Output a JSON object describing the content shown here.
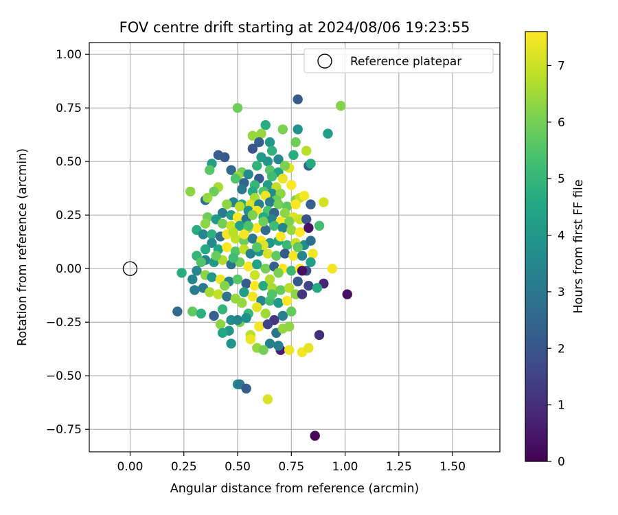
{
  "chart_data": {
    "type": "scatter",
    "title": "FOV centre drift starting at 2024/08/06 19:23:55",
    "xlabel": "Angular distance from reference (arcmin)",
    "ylabel": "Rotation from reference (arcmin)",
    "xlim": [
      -0.19,
      1.72
    ],
    "ylim": [
      -0.855,
      1.055
    ],
    "xticks": [
      0.0,
      0.25,
      0.5,
      0.75,
      1.0,
      1.25,
      1.5
    ],
    "xtick_labels": [
      "0.00",
      "0.25",
      "0.50",
      "0.75",
      "1.00",
      "1.25",
      "1.50"
    ],
    "yticks": [
      -0.75,
      -0.5,
      -0.25,
      0.0,
      0.25,
      0.5,
      0.75,
      1.0
    ],
    "ytick_labels": [
      "−0.75",
      "−0.50",
      "−0.25",
      "0.00",
      "0.25",
      "0.50",
      "0.75",
      "1.00"
    ],
    "grid": true,
    "legend": {
      "position": "top-right",
      "entries": [
        "Reference platepar"
      ]
    },
    "reference_point": {
      "x": 0.0,
      "y": 0.0,
      "label": "Reference platepar"
    },
    "colorbar": {
      "label": "Hours from first FF file",
      "colormap": "viridis",
      "range": [
        0,
        7.6
      ],
      "ticks": [
        0,
        1,
        2,
        3,
        4,
        5,
        6,
        7
      ],
      "tick_labels": [
        "0",
        "1",
        "2",
        "3",
        "4",
        "5",
        "6",
        "7"
      ]
    },
    "series": [
      {
        "points": [
          [
            0.98,
            0.76,
            6.2
          ],
          [
            0.5,
            0.75,
            5.9
          ],
          [
            0.78,
            0.79,
            2.2
          ],
          [
            0.92,
            0.63,
            4.2
          ],
          [
            0.63,
            0.67,
            4.7
          ],
          [
            0.71,
            0.65,
            6.1
          ],
          [
            0.78,
            0.65,
            3.9
          ],
          [
            0.61,
            0.63,
            6.4
          ],
          [
            0.57,
            0.62,
            6.4
          ],
          [
            0.6,
            0.59,
            2.3
          ],
          [
            0.57,
            0.56,
            2.0
          ],
          [
            0.65,
            0.59,
            4.0
          ],
          [
            0.77,
            0.59,
            5.9
          ],
          [
            0.82,
            0.55,
            6.8
          ],
          [
            0.76,
            0.53,
            4.7
          ],
          [
            0.41,
            0.53,
            2.3
          ],
          [
            0.44,
            0.52,
            2.1
          ],
          [
            0.61,
            0.52,
            4.1
          ],
          [
            0.64,
            0.5,
            4.0
          ],
          [
            0.69,
            0.51,
            3.5
          ],
          [
            0.83,
            0.48,
            2.4
          ],
          [
            0.84,
            0.49,
            4.6
          ],
          [
            0.74,
            0.47,
            7.3
          ],
          [
            0.38,
            0.49,
            4.3
          ],
          [
            0.47,
            0.46,
            2.6
          ],
          [
            0.52,
            0.45,
            6.0
          ],
          [
            0.59,
            0.48,
            4.9
          ],
          [
            0.65,
            0.46,
            5.6
          ],
          [
            0.69,
            0.45,
            4.4
          ],
          [
            0.37,
            0.46,
            5.6
          ],
          [
            0.5,
            0.43,
            6.5
          ],
          [
            0.55,
            0.44,
            3.6
          ],
          [
            0.6,
            0.42,
            2.1
          ],
          [
            0.66,
            0.43,
            5.2
          ],
          [
            0.71,
            0.42,
            7.4
          ],
          [
            0.49,
            0.42,
            5.5
          ],
          [
            0.53,
            0.4,
            2.5
          ],
          [
            0.58,
            0.39,
            5.0
          ],
          [
            0.64,
            0.39,
            4.2
          ],
          [
            0.68,
            0.38,
            6.9
          ],
          [
            0.75,
            0.39,
            7.6
          ],
          [
            0.41,
            0.38,
            6.6
          ],
          [
            0.52,
            0.37,
            3.0
          ],
          [
            0.57,
            0.36,
            4.6
          ],
          [
            0.62,
            0.36,
            5.5
          ],
          [
            0.66,
            0.35,
            3.7
          ],
          [
            0.7,
            0.35,
            6.3
          ],
          [
            0.28,
            0.36,
            6.3
          ],
          [
            0.39,
            0.36,
            5.9
          ],
          [
            0.35,
            0.32,
            2.7
          ],
          [
            0.58,
            0.33,
            6.6
          ],
          [
            0.63,
            0.34,
            7.4
          ],
          [
            0.68,
            0.32,
            5.8
          ],
          [
            0.77,
            0.32,
            6.2
          ],
          [
            0.79,
            0.33,
            6.9
          ],
          [
            0.81,
            0.34,
            7.5
          ],
          [
            0.84,
            0.3,
            2.3
          ],
          [
            0.9,
            0.31,
            7.1
          ],
          [
            0.48,
            0.31,
            3.4
          ],
          [
            0.52,
            0.3,
            4.5
          ],
          [
            0.56,
            0.3,
            7.2
          ],
          [
            0.6,
            0.3,
            3.3
          ],
          [
            0.65,
            0.31,
            3.2
          ],
          [
            0.69,
            0.3,
            6.0
          ],
          [
            0.73,
            0.29,
            5.7
          ],
          [
            0.77,
            0.3,
            7.6
          ],
          [
            0.51,
            0.29,
            6.8
          ],
          [
            0.55,
            0.27,
            3.8
          ],
          [
            0.59,
            0.27,
            7.5
          ],
          [
            0.64,
            0.27,
            5.4
          ],
          [
            0.67,
            0.26,
            2.5
          ],
          [
            0.72,
            0.26,
            6.3
          ],
          [
            0.76,
            0.24,
            7.2
          ],
          [
            0.79,
            0.23,
            7.0
          ],
          [
            0.43,
            0.26,
            3.1
          ],
          [
            0.47,
            0.25,
            4.2
          ],
          [
            0.5,
            0.24,
            7.6
          ],
          [
            0.54,
            0.23,
            2.9
          ],
          [
            0.57,
            0.25,
            6.1
          ],
          [
            0.62,
            0.24,
            4.6
          ],
          [
            0.66,
            0.23,
            3.4
          ],
          [
            0.7,
            0.22,
            7.6
          ],
          [
            0.74,
            0.22,
            6.1
          ],
          [
            0.82,
            0.23,
            2.0
          ],
          [
            0.36,
            0.24,
            5.9
          ],
          [
            0.4,
            0.23,
            4.1
          ],
          [
            0.43,
            0.21,
            6.0
          ],
          [
            0.47,
            0.2,
            7.0
          ],
          [
            0.51,
            0.2,
            4.4
          ],
          [
            0.55,
            0.19,
            6.5
          ],
          [
            0.59,
            0.19,
            7.6
          ],
          [
            0.63,
            0.18,
            2.6
          ],
          [
            0.67,
            0.2,
            5.2
          ],
          [
            0.71,
            0.19,
            3.4
          ],
          [
            0.75,
            0.18,
            6.4
          ],
          [
            0.79,
            0.17,
            7.6
          ],
          [
            0.83,
            0.19,
            0.4
          ],
          [
            0.88,
            0.2,
            5.3
          ],
          [
            0.35,
            0.21,
            6.3
          ],
          [
            0.31,
            0.18,
            4.7
          ],
          [
            0.34,
            0.16,
            3.5
          ],
          [
            0.38,
            0.16,
            4.8
          ],
          [
            0.42,
            0.15,
            2.8
          ],
          [
            0.45,
            0.16,
            7.5
          ],
          [
            0.49,
            0.14,
            6.9
          ],
          [
            0.53,
            0.13,
            5.9
          ],
          [
            0.57,
            0.14,
            3.0
          ],
          [
            0.61,
            0.13,
            7.6
          ],
          [
            0.65,
            0.12,
            4.0
          ],
          [
            0.69,
            0.13,
            4.5
          ],
          [
            0.73,
            0.11,
            5.1
          ],
          [
            0.77,
            0.12,
            7.0
          ],
          [
            0.81,
            0.11,
            3.7
          ],
          [
            0.84,
            0.13,
            2.8
          ],
          [
            0.38,
            0.12,
            3.6
          ],
          [
            0.41,
            0.09,
            4.5
          ],
          [
            0.45,
            0.1,
            7.6
          ],
          [
            0.49,
            0.08,
            5.5
          ],
          [
            0.53,
            0.09,
            6.9
          ],
          [
            0.56,
            0.07,
            3.3
          ],
          [
            0.6,
            0.08,
            4.0
          ],
          [
            0.64,
            0.07,
            7.1
          ],
          [
            0.68,
            0.06,
            5.7
          ],
          [
            0.72,
            0.07,
            2.1
          ],
          [
            0.76,
            0.06,
            7.5
          ],
          [
            0.8,
            0.06,
            3.5
          ],
          [
            0.85,
            0.07,
            7.5
          ],
          [
            0.35,
            0.09,
            4.6
          ],
          [
            0.31,
            0.06,
            5.0
          ],
          [
            0.35,
            0.04,
            3.3
          ],
          [
            0.39,
            0.03,
            4.0
          ],
          [
            0.43,
            0.04,
            6.7
          ],
          [
            0.47,
            0.02,
            2.8
          ],
          [
            0.51,
            0.03,
            5.9
          ],
          [
            0.55,
            0.01,
            7.6
          ],
          [
            0.59,
            0.02,
            4.4
          ],
          [
            0.63,
            0.0,
            6.0
          ],
          [
            0.67,
            0.01,
            2.3
          ],
          [
            0.71,
            0.0,
            7.6
          ],
          [
            0.75,
            -0.01,
            5.1
          ],
          [
            0.79,
            0.0,
            7.6
          ],
          [
            0.82,
            -0.01,
            1.9
          ],
          [
            0.84,
            0.03,
            4.2
          ],
          [
            0.94,
            0.0,
            7.5
          ],
          [
            0.8,
            -0.01,
            0.3
          ],
          [
            0.33,
            0.03,
            5.5
          ],
          [
            0.31,
            -0.01,
            3.5
          ],
          [
            0.35,
            -0.03,
            6.3
          ],
          [
            0.38,
            -0.04,
            4.0
          ],
          [
            0.42,
            -0.05,
            7.4
          ],
          [
            0.46,
            -0.06,
            3.4
          ],
          [
            0.5,
            -0.05,
            5.6
          ],
          [
            0.54,
            -0.07,
            2.2
          ],
          [
            0.58,
            -0.08,
            7.6
          ],
          [
            0.62,
            -0.08,
            4.6
          ],
          [
            0.66,
            -0.09,
            6.6
          ],
          [
            0.7,
            -0.1,
            5.8
          ],
          [
            0.74,
            -0.09,
            6.8
          ],
          [
            0.78,
            -0.06,
            2.1
          ],
          [
            0.83,
            -0.08,
            1.6
          ],
          [
            0.9,
            -0.07,
            0.8
          ],
          [
            0.24,
            -0.02,
            4.7
          ],
          [
            0.29,
            -0.05,
            3.4
          ],
          [
            0.34,
            -0.09,
            3.0
          ],
          [
            0.37,
            -0.11,
            6.6
          ],
          [
            0.41,
            -0.12,
            6.9
          ],
          [
            0.45,
            -0.13,
            2.9
          ],
          [
            0.49,
            -0.14,
            6.4
          ],
          [
            0.53,
            -0.11,
            4.2
          ],
          [
            0.57,
            -0.13,
            7.5
          ],
          [
            0.61,
            -0.15,
            3.5
          ],
          [
            0.65,
            -0.15,
            5.3
          ],
          [
            0.69,
            -0.16,
            4.1
          ],
          [
            0.73,
            -0.15,
            7.6
          ],
          [
            0.77,
            -0.12,
            6.3
          ],
          [
            0.8,
            -0.12,
            1.2
          ],
          [
            0.87,
            -0.09,
            4.6
          ],
          [
            1.01,
            -0.12,
            0.3
          ],
          [
            0.29,
            -0.2,
            5.7
          ],
          [
            0.3,
            -0.1,
            3.2
          ],
          [
            0.33,
            -0.21,
            4.8
          ],
          [
            0.39,
            -0.22,
            2.3
          ],
          [
            0.43,
            -0.19,
            5.0
          ],
          [
            0.47,
            -0.24,
            3.7
          ],
          [
            0.51,
            -0.25,
            6.0
          ],
          [
            0.55,
            -0.21,
            5.1
          ],
          [
            0.59,
            -0.18,
            7.3
          ],
          [
            0.63,
            -0.21,
            6.5
          ],
          [
            0.67,
            -0.24,
            1.2
          ],
          [
            0.71,
            -0.22,
            3.2
          ],
          [
            0.75,
            -0.2,
            5.8
          ],
          [
            0.22,
            -0.2,
            2.6
          ],
          [
            0.42,
            -0.26,
            6.3
          ],
          [
            0.46,
            -0.29,
            4.0
          ],
          [
            0.5,
            -0.24,
            3.4
          ],
          [
            0.54,
            -0.23,
            3.8
          ],
          [
            0.6,
            -0.27,
            7.5
          ],
          [
            0.64,
            -0.26,
            1.5
          ],
          [
            0.68,
            -0.3,
            2.9
          ],
          [
            0.71,
            -0.28,
            6.4
          ],
          [
            0.43,
            -0.3,
            4.5
          ],
          [
            0.47,
            -0.35,
            3.9
          ],
          [
            0.56,
            -0.31,
            6.8
          ],
          [
            0.65,
            -0.35,
            3.3
          ],
          [
            0.7,
            -0.38,
            0.6
          ],
          [
            0.74,
            -0.38,
            7.4
          ],
          [
            0.8,
            -0.39,
            7.5
          ],
          [
            0.83,
            -0.37,
            7.3
          ],
          [
            0.88,
            -0.31,
            1.0
          ],
          [
            0.59,
            -0.37,
            6.4
          ],
          [
            0.62,
            -0.38,
            6.0
          ],
          [
            0.69,
            -0.36,
            3.2
          ],
          [
            0.5,
            -0.54,
            3.7
          ],
          [
            0.51,
            -0.54,
            3.0
          ],
          [
            0.54,
            -0.56,
            2.2
          ],
          [
            0.64,
            -0.61,
            7.2
          ],
          [
            0.86,
            -0.78,
            0.1
          ],
          [
            0.56,
            -0.33,
            7.4
          ],
          [
            0.66,
            0.55,
            4.9
          ],
          [
            0.72,
            0.48,
            6.1
          ],
          [
            0.45,
            0.3,
            6.3
          ],
          [
            0.36,
            0.33,
            6.4
          ],
          [
            0.48,
            0.17,
            6.8
          ],
          [
            0.53,
            0.16,
            7.5
          ],
          [
            0.62,
            0.11,
            7.2
          ],
          [
            0.7,
            0.15,
            7.6
          ],
          [
            0.58,
            -0.03,
            7.0
          ],
          [
            0.65,
            -0.05,
            6.7
          ],
          [
            0.44,
            -0.08,
            6.2
          ],
          [
            0.52,
            -0.16,
            6.4
          ],
          [
            0.74,
            -0.27,
            6.3
          ],
          [
            0.55,
            0.2,
            5.4
          ],
          [
            0.59,
            0.1,
            5.6
          ],
          [
            0.66,
            -0.12,
            5.5
          ],
          [
            0.48,
            0.05,
            5.2
          ],
          [
            0.78,
            0.1,
            5.7
          ],
          [
            0.62,
            0.22,
            5.9
          ],
          [
            0.69,
            -0.02,
            6.1
          ],
          [
            0.4,
            0.06,
            5.8
          ]
        ]
      }
    ]
  }
}
